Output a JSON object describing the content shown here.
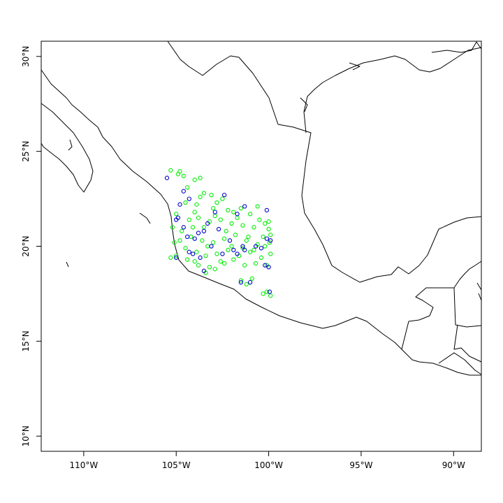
{
  "map": {
    "x_ticks": [
      {
        "value": -110,
        "label": "110°W"
      },
      {
        "value": -105,
        "label": "105°W"
      },
      {
        "value": -100,
        "label": "100°W"
      },
      {
        "value": -95,
        "label": "95°W"
      },
      {
        "value": -90,
        "label": "90°W"
      }
    ],
    "y_ticks": [
      {
        "value": 10,
        "label": "10°N"
      },
      {
        "value": 15,
        "label": "15°N"
      },
      {
        "value": 20,
        "label": "20°N"
      },
      {
        "value": 25,
        "label": "25°N"
      },
      {
        "value": 30,
        "label": "30°N"
      }
    ],
    "xlim": [
      -112.3,
      -88.5
    ],
    "ylim": [
      9.2,
      30.8
    ],
    "colors": {
      "series_green": "#00ee00",
      "series_blue": "#0000cc",
      "coastline": "#000000"
    }
  },
  "chart_data": {
    "type": "scatter",
    "title": "",
    "xlabel": "",
    "ylabel": "",
    "xlim": [
      -112.3,
      -88.5
    ],
    "ylim": [
      9.2,
      30.8
    ],
    "grid": false,
    "series": [
      {
        "color": "#00ee00",
        "points": [
          [
            -105.3,
            24.0
          ],
          [
            -104.8,
            23.95
          ],
          [
            -104.6,
            23.7
          ],
          [
            -104.9,
            23.8
          ],
          [
            -104.0,
            23.5
          ],
          [
            -103.7,
            23.6
          ],
          [
            -104.4,
            23.1
          ],
          [
            -103.5,
            22.8
          ],
          [
            -103.1,
            22.7
          ],
          [
            -102.5,
            22.5
          ],
          [
            -104.5,
            22.3
          ],
          [
            -103.9,
            22.2
          ],
          [
            -103.0,
            22.0
          ],
          [
            -102.2,
            21.9
          ],
          [
            -101.5,
            22.0
          ],
          [
            -101.0,
            21.7
          ],
          [
            -100.6,
            22.1
          ],
          [
            -105.0,
            21.7
          ],
          [
            -104.3,
            21.4
          ],
          [
            -103.8,
            21.5
          ],
          [
            -103.2,
            21.3
          ],
          [
            -102.6,
            21.4
          ],
          [
            -102.0,
            21.2
          ],
          [
            -101.4,
            21.1
          ],
          [
            -100.8,
            21.0
          ],
          [
            -100.2,
            21.2
          ],
          [
            -100.0,
            20.9
          ],
          [
            -105.2,
            21.0
          ],
          [
            -104.7,
            20.8
          ],
          [
            -104.2,
            20.5
          ],
          [
            -103.6,
            20.3
          ],
          [
            -103.0,
            20.2
          ],
          [
            -102.4,
            20.4
          ],
          [
            -101.8,
            20.6
          ],
          [
            -101.2,
            20.3
          ],
          [
            -100.6,
            20.1
          ],
          [
            -100.2,
            20.0
          ],
          [
            -105.1,
            20.2
          ],
          [
            -104.5,
            19.9
          ],
          [
            -103.9,
            19.7
          ],
          [
            -103.4,
            19.5
          ],
          [
            -102.8,
            19.6
          ],
          [
            -102.2,
            19.8
          ],
          [
            -101.6,
            19.5
          ],
          [
            -101.0,
            19.7
          ],
          [
            -100.4,
            19.4
          ],
          [
            -99.9,
            19.6
          ],
          [
            -105.0,
            19.5
          ],
          [
            -104.4,
            19.3
          ],
          [
            -103.8,
            19.0
          ],
          [
            -103.2,
            18.9
          ],
          [
            -102.6,
            19.2
          ],
          [
            -101.9,
            19.3
          ],
          [
            -101.3,
            19.0
          ],
          [
            -100.7,
            19.1
          ],
          [
            -100.1,
            19.0
          ],
          [
            -103.4,
            18.6
          ],
          [
            -102.9,
            18.8
          ],
          [
            -101.5,
            18.2
          ],
          [
            -101.2,
            18.0
          ],
          [
            -100.9,
            18.3
          ],
          [
            -100.1,
            17.6
          ],
          [
            -99.9,
            17.4
          ],
          [
            -100.3,
            17.5
          ],
          [
            -104.1,
            21.0
          ],
          [
            -102.9,
            21.6
          ],
          [
            -101.7,
            21.5
          ],
          [
            -100.5,
            21.4
          ],
          [
            -99.9,
            20.6
          ],
          [
            -100.0,
            21.3
          ],
          [
            -104.8,
            20.3
          ],
          [
            -103.3,
            20.0
          ],
          [
            -102.0,
            20.0
          ],
          [
            -101.4,
            19.9
          ],
          [
            -100.8,
            19.8
          ],
          [
            -105.3,
            19.4
          ],
          [
            -104.0,
            19.2
          ],
          [
            -102.4,
            19.1
          ],
          [
            -103.7,
            22.6
          ],
          [
            -102.8,
            22.3
          ],
          [
            -104.0,
            21.8
          ],
          [
            -101.9,
            21.8
          ],
          [
            -100.3,
            20.5
          ],
          [
            -99.95,
            20.2
          ],
          [
            -103.5,
            21.0
          ],
          [
            -102.3,
            20.8
          ],
          [
            -101.1,
            20.5
          ]
        ]
      },
      {
        "color": "#0000cc",
        "points": [
          [
            -105.5,
            23.6
          ],
          [
            -104.6,
            22.9
          ],
          [
            -104.3,
            22.5
          ],
          [
            -102.4,
            22.7
          ],
          [
            -104.8,
            22.2
          ],
          [
            -101.3,
            22.1
          ],
          [
            -100.1,
            21.9
          ],
          [
            -101.7,
            21.7
          ],
          [
            -105.0,
            21.4
          ],
          [
            -104.9,
            21.5
          ],
          [
            -103.3,
            21.2
          ],
          [
            -102.7,
            20.9
          ],
          [
            -103.8,
            20.7
          ],
          [
            -103.5,
            20.8
          ],
          [
            -104.4,
            20.5
          ],
          [
            -102.1,
            20.3
          ],
          [
            -101.9,
            19.8
          ],
          [
            -102.5,
            19.6
          ],
          [
            -104.1,
            19.6
          ],
          [
            -103.7,
            19.4
          ],
          [
            -104.3,
            19.7
          ],
          [
            -101.7,
            19.6
          ],
          [
            -101.3,
            19.8
          ],
          [
            -100.4,
            19.9
          ],
          [
            -100.1,
            20.4
          ],
          [
            -99.9,
            20.3
          ],
          [
            -100.7,
            20.0
          ],
          [
            -103.5,
            18.7
          ],
          [
            -101.5,
            18.1
          ],
          [
            -101.0,
            18.1
          ],
          [
            -100.0,
            18.9
          ],
          [
            -99.95,
            17.6
          ],
          [
            -105.0,
            19.4
          ],
          [
            -104.0,
            20.4
          ],
          [
            -102.9,
            21.8
          ],
          [
            -101.4,
            20.0
          ],
          [
            -100.2,
            19.0
          ],
          [
            -103.1,
            20.0
          ],
          [
            -104.6,
            21.0
          ]
        ]
      }
    ]
  }
}
